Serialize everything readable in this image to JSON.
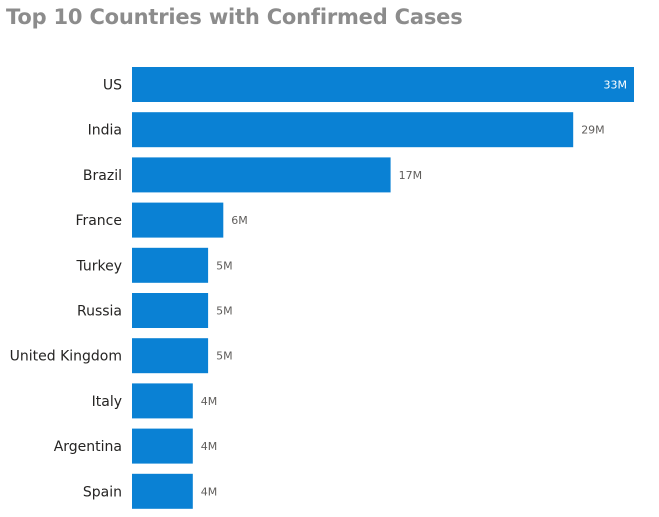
{
  "title": "Top 10 Countries with Confirmed Cases",
  "colors": {
    "bar": "#0a81d4",
    "title": "#8c8c8c",
    "category_text": "#252423",
    "value_text": "#605e5c",
    "value_text_inside": "#ffffff"
  },
  "chart_data": {
    "type": "bar",
    "orientation": "horizontal",
    "title": "Top 10 Countries with Confirmed Cases",
    "categories": [
      "US",
      "India",
      "Brazil",
      "France",
      "Turkey",
      "Russia",
      "United Kingdom",
      "Italy",
      "Argentina",
      "Spain"
    ],
    "values": [
      33,
      29,
      17,
      6,
      5,
      5,
      5,
      4,
      4,
      4
    ],
    "value_labels": [
      "33M",
      "29M",
      "17M",
      "6M",
      "5M",
      "5M",
      "5M",
      "4M",
      "4M",
      "4M"
    ],
    "unit": "M",
    "xlim": [
      0,
      33
    ],
    "xlabel": "",
    "ylabel": "",
    "grid": false,
    "legend": "none"
  }
}
